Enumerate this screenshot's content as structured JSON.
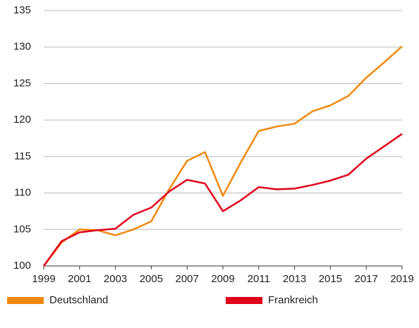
{
  "chart_data": {
    "type": "line",
    "x": [
      1999,
      2000,
      2001,
      2002,
      2003,
      2004,
      2005,
      2006,
      2007,
      2008,
      2009,
      2010,
      2011,
      2012,
      2013,
      2014,
      2015,
      2016,
      2017,
      2018,
      2019
    ],
    "series": [
      {
        "name": "Deutschland",
        "color": "#f0890f",
        "values": [
          100,
          103.2,
          105,
          104.9,
          104.2,
          105,
          106.1,
          110.5,
          114.4,
          115.6,
          109.6,
          114.2,
          118.5,
          119.1,
          119.5,
          121.2,
          122,
          123.3,
          125.8,
          127.9,
          130.1
        ]
      },
      {
        "name": "Frankreich",
        "color": "#e1001a",
        "values": [
          100,
          103.4,
          104.6,
          104.9,
          105.1,
          107,
          108,
          110.2,
          111.8,
          111.3,
          107.5,
          109,
          110.8,
          110.5,
          110.6,
          111.1,
          111.7,
          112.5,
          114.7,
          116.4,
          118.1
        ]
      }
    ],
    "xlim": [
      1999,
      2019
    ],
    "xticks": [
      1999,
      2001,
      2003,
      2005,
      2007,
      2009,
      2011,
      2013,
      2015,
      2017,
      2019
    ],
    "ylim": [
      100,
      135
    ],
    "yticks": [
      100,
      105,
      110,
      115,
      120,
      125,
      130,
      135
    ],
    "grid": true,
    "legend": "bottom"
  }
}
